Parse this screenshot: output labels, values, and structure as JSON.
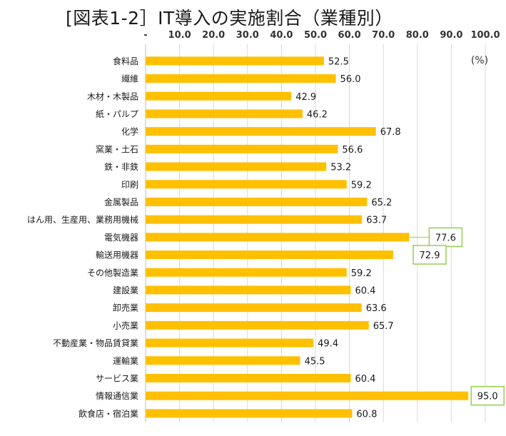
{
  "chart_data": {
    "type": "bar",
    "orientation": "horizontal",
    "title": "[図表1-2］IT導入の実施割合（業種別）",
    "unit_label": "(%)",
    "xlim": [
      0,
      100
    ],
    "x_ticks": [
      "-",
      "10.0",
      "20.0",
      "30.0",
      "40.0",
      "50.0",
      "60.0",
      "70.0",
      "80.0",
      "90.0",
      "100.0"
    ],
    "grid": true,
    "bar_color": "#ffc000",
    "callout_color": "#92d050",
    "categories": [
      "食料品",
      "繊維",
      "木材・木製品",
      "紙・パルプ",
      "化学",
      "窯業・土石",
      "鉄・非鉄",
      "印刷",
      "金属製品",
      "はん用、生産用、業務用機械",
      "電気機器",
      "輸送用機器",
      "その他製造業",
      "建設業",
      "卸売業",
      "小売業",
      "不動産業・物品賃貸業",
      "運輸業",
      "サービス業",
      "情報通信業",
      "飲食店・宿泊業"
    ],
    "values": [
      52.5,
      56.0,
      42.9,
      46.2,
      67.8,
      56.6,
      53.2,
      59.2,
      65.2,
      63.7,
      77.6,
      72.9,
      59.2,
      60.4,
      63.6,
      65.7,
      49.4,
      45.5,
      60.4,
      95.0,
      60.8
    ],
    "value_labels": [
      "52.5",
      "56.0",
      "42.9",
      "46.2",
      "67.8",
      "56.6",
      "53.2",
      "59.2",
      "65.2",
      "63.7",
      "77.6",
      "72.9",
      "59.2",
      "60.4",
      "63.6",
      "65.7",
      "49.4",
      "45.5",
      "60.4",
      "95.0",
      "60.8"
    ],
    "highlighted": [
      "電気機器",
      "輸送用機器",
      "情報通信業"
    ]
  }
}
